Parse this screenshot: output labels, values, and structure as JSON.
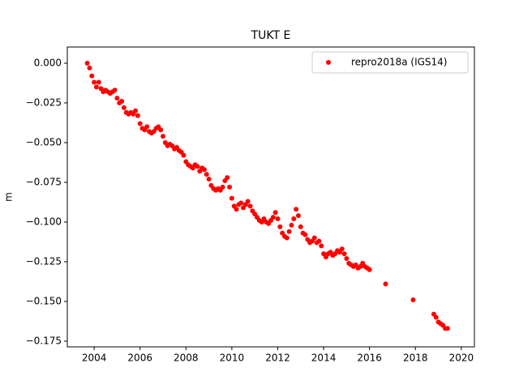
{
  "chart_data": {
    "type": "scatter",
    "title": "TUKT E",
    "y_label": "m",
    "xlim": [
      2002.83,
      2020.57
    ],
    "ylim": [
      -0.1786,
      0.0102
    ],
    "xticks": [
      2004,
      2006,
      2008,
      2010,
      2012,
      2014,
      2016,
      2018,
      2020
    ],
    "yticks": [
      {
        "value": 0,
        "label": "0.000"
      },
      {
        "value": -0.025,
        "label": "−0.025"
      },
      {
        "value": -0.05,
        "label": "−0.050"
      },
      {
        "value": -0.075,
        "label": "−0.075"
      },
      {
        "value": -0.1,
        "label": "−0.100"
      },
      {
        "value": -0.125,
        "label": "−0.125"
      },
      {
        "value": -0.15,
        "label": "−0.150"
      },
      {
        "value": -0.175,
        "label": "−0.175"
      }
    ],
    "legend": "upper right",
    "series": [
      {
        "name": "repro2018a (IGS14)",
        "color": "#ff0000",
        "x": [
          2003.7,
          2003.8,
          2003.9,
          2004.0,
          2004.1,
          2004.2,
          2004.3,
          2004.4,
          2004.5,
          2004.6,
          2004.7,
          2004.8,
          2004.9,
          2005.0,
          2005.1,
          2005.2,
          2005.3,
          2005.4,
          2005.5,
          2005.6,
          2005.7,
          2005.8,
          2005.9,
          2006.0,
          2006.1,
          2006.2,
          2006.3,
          2006.4,
          2006.5,
          2006.6,
          2006.7,
          2006.8,
          2006.9,
          2007.0,
          2007.1,
          2007.2,
          2007.3,
          2007.4,
          2007.5,
          2007.6,
          2007.7,
          2007.8,
          2007.9,
          2008.0,
          2008.1,
          2008.2,
          2008.3,
          2008.4,
          2008.5,
          2008.6,
          2008.7,
          2008.8,
          2008.9,
          2009.0,
          2009.1,
          2009.2,
          2009.3,
          2009.4,
          2009.5,
          2009.6,
          2009.7,
          2009.8,
          2009.9,
          2010.0,
          2010.1,
          2010.2,
          2010.3,
          2010.4,
          2010.5,
          2010.6,
          2010.7,
          2010.8,
          2010.9,
          2011.0,
          2011.1,
          2011.2,
          2011.3,
          2011.4,
          2011.5,
          2011.6,
          2011.7,
          2011.8,
          2011.9,
          2012.0,
          2012.1,
          2012.2,
          2012.3,
          2012.4,
          2012.5,
          2012.6,
          2012.7,
          2012.8,
          2012.9,
          2013.0,
          2013.1,
          2013.2,
          2013.3,
          2013.4,
          2013.5,
          2013.6,
          2013.7,
          2013.8,
          2013.9,
          2014.0,
          2014.1,
          2014.2,
          2014.3,
          2014.4,
          2014.5,
          2014.6,
          2014.7,
          2014.8,
          2014.9,
          2015.0,
          2015.1,
          2015.2,
          2015.3,
          2015.4,
          2015.5,
          2015.6,
          2015.7,
          2015.8,
          2015.9,
          2016.0,
          2016.7,
          2017.9,
          2018.8,
          2018.9,
          2019.0,
          2019.1,
          2019.2,
          2019.3,
          2019.4
        ],
        "values": [
          0.0,
          -0.003,
          -0.008,
          -0.012,
          -0.015,
          -0.012,
          -0.016,
          -0.018,
          -0.017,
          -0.018,
          -0.019,
          -0.018,
          -0.017,
          -0.022,
          -0.025,
          -0.024,
          -0.028,
          -0.031,
          -0.032,
          -0.031,
          -0.032,
          -0.03,
          -0.033,
          -0.038,
          -0.041,
          -0.042,
          -0.04,
          -0.043,
          -0.044,
          -0.043,
          -0.041,
          -0.04,
          -0.042,
          -0.046,
          -0.05,
          -0.052,
          -0.051,
          -0.052,
          -0.054,
          -0.053,
          -0.055,
          -0.056,
          -0.058,
          -0.062,
          -0.064,
          -0.065,
          -0.066,
          -0.064,
          -0.065,
          -0.068,
          -0.066,
          -0.067,
          -0.07,
          -0.073,
          -0.077,
          -0.079,
          -0.08,
          -0.079,
          -0.08,
          -0.078,
          -0.074,
          -0.072,
          -0.078,
          -0.085,
          -0.09,
          -0.092,
          -0.089,
          -0.088,
          -0.091,
          -0.089,
          -0.087,
          -0.09,
          -0.093,
          -0.095,
          -0.097,
          -0.099,
          -0.1,
          -0.098,
          -0.1,
          -0.101,
          -0.099,
          -0.097,
          -0.094,
          -0.098,
          -0.103,
          -0.107,
          -0.109,
          -0.11,
          -0.106,
          -0.102,
          -0.098,
          -0.092,
          -0.096,
          -0.103,
          -0.107,
          -0.108,
          -0.111,
          -0.113,
          -0.112,
          -0.11,
          -0.113,
          -0.112,
          -0.115,
          -0.12,
          -0.122,
          -0.12,
          -0.119,
          -0.121,
          -0.12,
          -0.118,
          -0.119,
          -0.117,
          -0.12,
          -0.123,
          -0.126,
          -0.127,
          -0.128,
          -0.127,
          -0.129,
          -0.128,
          -0.126,
          -0.128,
          -0.129,
          -0.13,
          -0.139,
          -0.149,
          -0.158,
          -0.16,
          -0.163,
          -0.164,
          -0.165,
          -0.167,
          -0.167
        ]
      }
    ]
  }
}
